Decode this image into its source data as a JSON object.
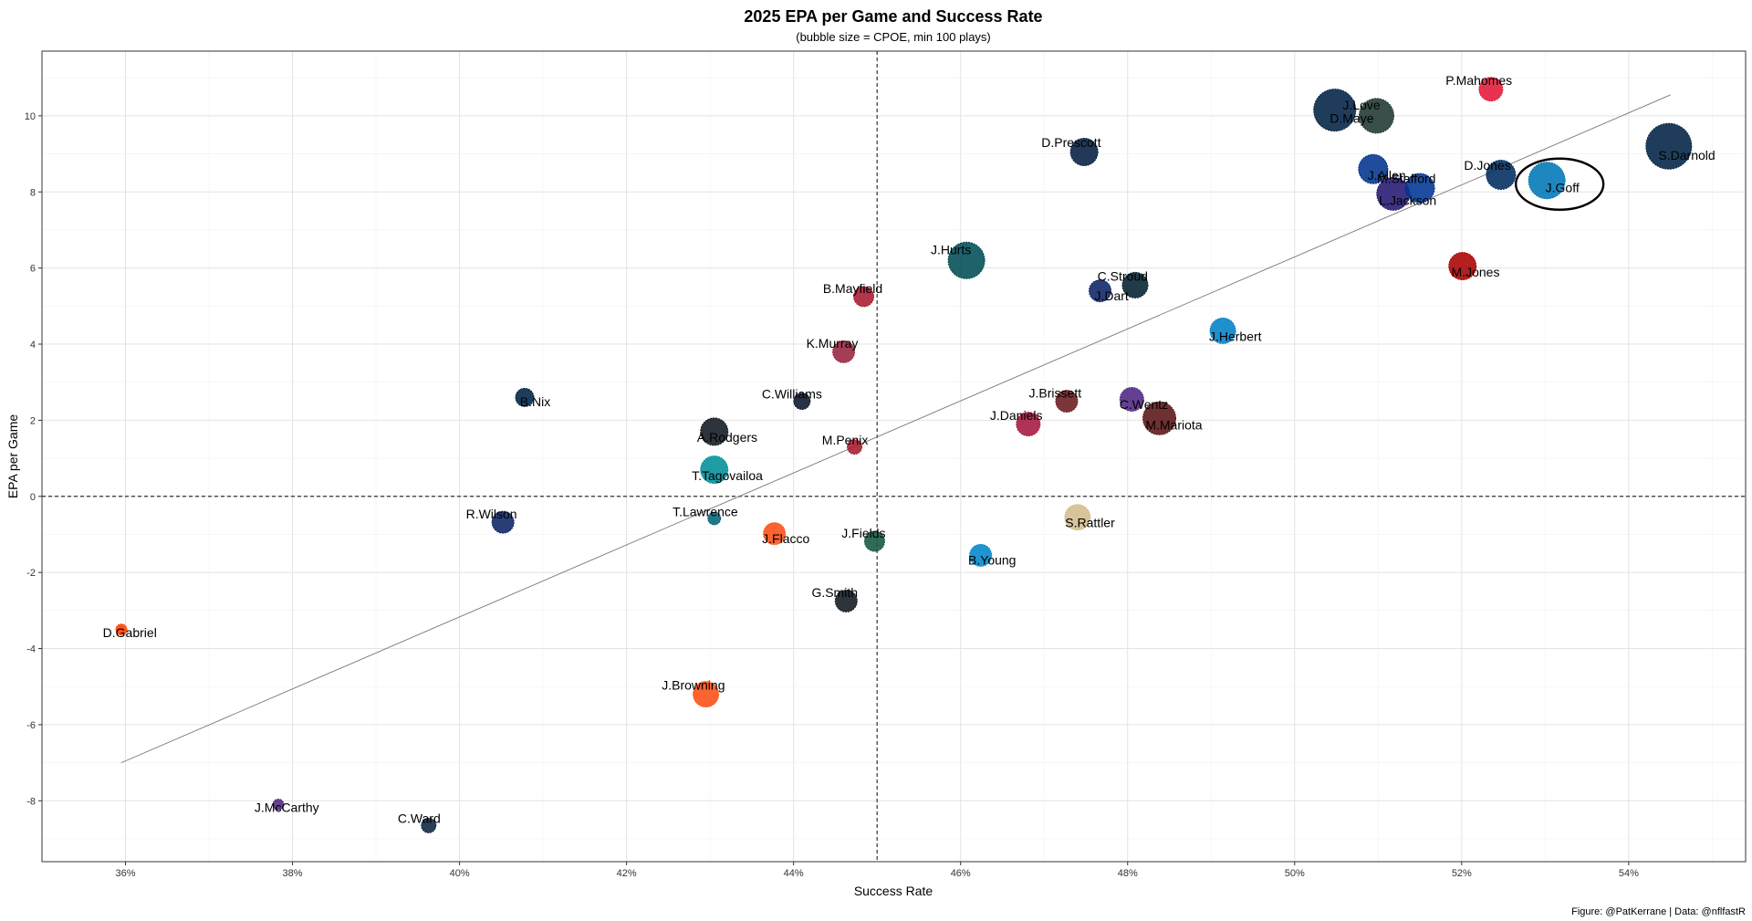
{
  "chart_data": {
    "type": "scatter",
    "title": "2025 EPA per Game and Success Rate",
    "subtitle": "(bubble size = CPOE, min 100 plays)",
    "xlabel": "Success Rate",
    "ylabel": "EPA per Game",
    "caption": "Figure: @PatKerrane | Data: @nflfastR",
    "xlim": [
      0.35,
      0.554
    ],
    "ylim": [
      -9.6,
      11.7
    ],
    "x_ticks": [
      0.36,
      0.38,
      0.4,
      0.42,
      0.44,
      0.46,
      0.48,
      0.5,
      0.52,
      0.54
    ],
    "x_tick_labels": [
      "36%",
      "38%",
      "40%",
      "42%",
      "44%",
      "46%",
      "48%",
      "50%",
      "52%",
      "54%"
    ],
    "y_ticks": [
      -8,
      -6,
      -4,
      -2,
      0,
      2,
      4,
      6,
      8,
      10
    ],
    "y_tick_labels": [
      "-8",
      "-6",
      "-4",
      "-2",
      "0",
      "2",
      "4",
      "6",
      "8",
      "10"
    ],
    "vline_x": 0.45,
    "hline_y": 0,
    "trend_line": [
      [
        0.3595,
        -7.0
      ],
      [
        0.545,
        10.55
      ]
    ],
    "highlight": "J.Goff",
    "grid": true,
    "points": [
      {
        "name": "P.Mahomes",
        "x": 0.5235,
        "y": 10.7,
        "size": 13,
        "color": "#e31837"
      },
      {
        "name": "D.Maye",
        "x": 0.5048,
        "y": 10.15,
        "size": 23,
        "color": "#002244"
      },
      {
        "name": "J.Love",
        "x": 0.5098,
        "y": 10.0,
        "size": 19,
        "color": "#203731"
      },
      {
        "name": "S.Darnold",
        "x": 0.5448,
        "y": 9.2,
        "size": 25,
        "color": "#002244"
      },
      {
        "name": "D.Prescott",
        "x": 0.4748,
        "y": 9.05,
        "size": 15,
        "color": "#041e42"
      },
      {
        "name": "J.Allen",
        "x": 0.5094,
        "y": 8.6,
        "size": 16,
        "color": "#00338d"
      },
      {
        "name": "D.Jones",
        "x": 0.5247,
        "y": 8.45,
        "size": 16,
        "color": "#002c5f"
      },
      {
        "name": "J.Goff",
        "x": 0.5302,
        "y": 8.3,
        "size": 20,
        "color": "#0076b6"
      },
      {
        "name": "M.Stafford",
        "x": 0.515,
        "y": 8.1,
        "size": 16,
        "color": "#003594"
      },
      {
        "name": "L.Jackson",
        "x": 0.5118,
        "y": 7.95,
        "size": 18,
        "color": "#241773"
      },
      {
        "name": "J.Hurts",
        "x": 0.4607,
        "y": 6.2,
        "size": 20,
        "color": "#004c54"
      },
      {
        "name": "M.Jones",
        "x": 0.5201,
        "y": 6.05,
        "size": 15,
        "color": "#aa0000"
      },
      {
        "name": "C.Stroud",
        "x": 0.4809,
        "y": 5.55,
        "size": 14,
        "color": "#03202f"
      },
      {
        "name": "J.Dart",
        "x": 0.4767,
        "y": 5.4,
        "size": 12,
        "color": "#0b2265"
      },
      {
        "name": "B.Mayfield",
        "x": 0.4484,
        "y": 5.25,
        "size": 11,
        "color": "#a71930"
      },
      {
        "name": "J.Herbert",
        "x": 0.4914,
        "y": 4.35,
        "size": 14,
        "color": "#0080c6"
      },
      {
        "name": "K.Murray",
        "x": 0.446,
        "y": 3.8,
        "size": 12,
        "color": "#97233f"
      },
      {
        "name": "B.Nix",
        "x": 0.4078,
        "y": 2.6,
        "size": 10,
        "color": "#002244"
      },
      {
        "name": "C.Williams",
        "x": 0.441,
        "y": 2.5,
        "size": 9,
        "color": "#0b162a"
      },
      {
        "name": "C.Wentz",
        "x": 0.4805,
        "y": 2.55,
        "size": 13,
        "color": "#4f2683"
      },
      {
        "name": "J.Brissett",
        "x": 0.4727,
        "y": 2.5,
        "size": 12,
        "color": "#6a1a1e"
      },
      {
        "name": "M.Mariota",
        "x": 0.4838,
        "y": 2.05,
        "size": 18,
        "color": "#5a1414"
      },
      {
        "name": "J.Daniels",
        "x": 0.4681,
        "y": 1.9,
        "size": 13,
        "color": "#a5173f"
      },
      {
        "name": "A.Rodgers",
        "x": 0.4305,
        "y": 1.7,
        "size": 15,
        "color": "#101820"
      },
      {
        "name": "M.Penix",
        "x": 0.4473,
        "y": 1.3,
        "size": 8,
        "color": "#a71930"
      },
      {
        "name": "T.Tagovailoa",
        "x": 0.4305,
        "y": 0.7,
        "size": 15,
        "color": "#008e97"
      },
      {
        "name": "T.Lawrence",
        "x": 0.4305,
        "y": -0.58,
        "size": 7,
        "color": "#006778"
      },
      {
        "name": "S.Rattler",
        "x": 0.474,
        "y": -0.55,
        "size": 14,
        "color": "#d3bc8d"
      },
      {
        "name": "R.Wilson",
        "x": 0.4052,
        "y": -0.68,
        "size": 12,
        "color": "#0b2265"
      },
      {
        "name": "J.Flacco",
        "x": 0.4377,
        "y": -0.98,
        "size": 12,
        "color": "#fb4f14"
      },
      {
        "name": "J.Fields",
        "x": 0.4497,
        "y": -1.18,
        "size": 11,
        "color": "#125740"
      },
      {
        "name": "B.Young",
        "x": 0.4624,
        "y": -1.55,
        "size": 12,
        "color": "#0085ca"
      },
      {
        "name": "G.Smith",
        "x": 0.4463,
        "y": -2.75,
        "size": 12,
        "color": "#101820"
      },
      {
        "name": "D.Gabriel",
        "x": 0.3595,
        "y": -3.5,
        "size": 6,
        "color": "#ff3c00"
      },
      {
        "name": "J.Browning",
        "x": 0.4295,
        "y": -5.2,
        "size": 14,
        "color": "#fb4f14"
      },
      {
        "name": "J.McCarthy",
        "x": 0.3783,
        "y": -8.1,
        "size": 6,
        "color": "#4f2683"
      },
      {
        "name": "C.Ward",
        "x": 0.3963,
        "y": -8.65,
        "size": 8,
        "color": "#0c2340"
      }
    ]
  }
}
